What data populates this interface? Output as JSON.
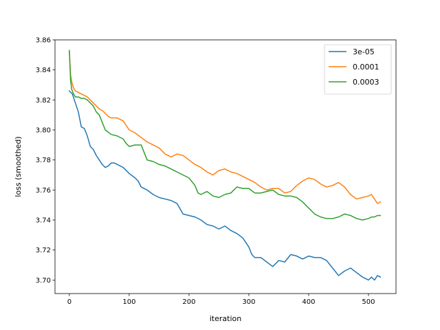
{
  "chart_data": {
    "type": "line",
    "title": "",
    "xlabel": "iteration",
    "ylabel": "loss (smoothed)",
    "xlim": [
      -24,
      546
    ],
    "ylim": [
      3.691,
      3.86
    ],
    "xticks": [
      0,
      100,
      200,
      300,
      400,
      500
    ],
    "yticks": [
      3.7,
      3.72,
      3.74,
      3.76,
      3.78,
      3.8,
      3.82,
      3.84,
      3.86
    ],
    "grid": false,
    "legend": {
      "position": "top-right"
    },
    "series": [
      {
        "name": "3e-05",
        "color": "#1f77b4",
        "x": [
          0,
          5,
          10,
          15,
          20,
          25,
          30,
          35,
          40,
          45,
          50,
          55,
          60,
          65,
          70,
          75,
          80,
          90,
          100,
          110,
          115,
          120,
          130,
          140,
          150,
          160,
          170,
          180,
          190,
          200,
          210,
          220,
          230,
          240,
          250,
          260,
          270,
          280,
          290,
          300,
          305,
          310,
          320,
          330,
          340,
          350,
          360,
          370,
          380,
          390,
          400,
          410,
          420,
          430,
          440,
          450,
          460,
          470,
          480,
          490,
          500,
          505,
          510,
          515,
          520
        ],
        "y": [
          3.826,
          3.824,
          3.818,
          3.812,
          3.802,
          3.801,
          3.796,
          3.789,
          3.787,
          3.783,
          3.78,
          3.777,
          3.775,
          3.776,
          3.778,
          3.778,
          3.777,
          3.775,
          3.771,
          3.768,
          3.766,
          3.762,
          3.76,
          3.757,
          3.755,
          3.754,
          3.753,
          3.751,
          3.744,
          3.743,
          3.742,
          3.74,
          3.737,
          3.736,
          3.734,
          3.736,
          3.733,
          3.731,
          3.728,
          3.722,
          3.717,
          3.715,
          3.715,
          3.712,
          3.709,
          3.713,
          3.712,
          3.717,
          3.716,
          3.714,
          3.716,
          3.715,
          3.715,
          3.713,
          3.708,
          3.703,
          3.706,
          3.708,
          3.705,
          3.702,
          3.7,
          3.702,
          3.7,
          3.703,
          3.702
        ]
      },
      {
        "name": "0.0001",
        "color": "#ff7f0e",
        "x": [
          0,
          2,
          4,
          7,
          10,
          15,
          20,
          25,
          30,
          35,
          40,
          45,
          50,
          55,
          60,
          65,
          70,
          80,
          90,
          100,
          110,
          120,
          130,
          140,
          150,
          160,
          170,
          180,
          190,
          200,
          210,
          220,
          230,
          240,
          250,
          260,
          270,
          280,
          290,
          300,
          310,
          320,
          330,
          340,
          350,
          360,
          370,
          380,
          390,
          400,
          410,
          420,
          430,
          440,
          450,
          460,
          470,
          480,
          490,
          500,
          505,
          510,
          515,
          520
        ],
        "y": [
          3.852,
          3.837,
          3.832,
          3.828,
          3.826,
          3.825,
          3.824,
          3.823,
          3.822,
          3.82,
          3.818,
          3.816,
          3.814,
          3.813,
          3.811,
          3.809,
          3.808,
          3.808,
          3.806,
          3.8,
          3.798,
          3.795,
          3.792,
          3.79,
          3.788,
          3.784,
          3.782,
          3.784,
          3.783,
          3.78,
          3.777,
          3.775,
          3.772,
          3.77,
          3.773,
          3.774,
          3.772,
          3.771,
          3.769,
          3.767,
          3.765,
          3.762,
          3.76,
          3.761,
          3.761,
          3.758,
          3.759,
          3.763,
          3.766,
          3.768,
          3.767,
          3.764,
          3.762,
          3.763,
          3.765,
          3.762,
          3.757,
          3.754,
          3.755,
          3.756,
          3.757,
          3.754,
          3.751,
          3.752
        ]
      },
      {
        "name": "0.0003",
        "color": "#2ca02c",
        "x": [
          0,
          2,
          4,
          7,
          10,
          15,
          20,
          25,
          30,
          35,
          40,
          45,
          50,
          55,
          60,
          70,
          80,
          90,
          95,
          100,
          110,
          120,
          130,
          140,
          150,
          160,
          170,
          180,
          190,
          200,
          210,
          215,
          220,
          230,
          240,
          250,
          260,
          270,
          280,
          290,
          300,
          310,
          320,
          330,
          340,
          350,
          360,
          370,
          380,
          390,
          400,
          410,
          420,
          430,
          440,
          450,
          460,
          470,
          480,
          490,
          500,
          505,
          510,
          515,
          520
        ],
        "y": [
          3.853,
          3.833,
          3.827,
          3.824,
          3.822,
          3.822,
          3.821,
          3.821,
          3.82,
          3.818,
          3.816,
          3.812,
          3.81,
          3.805,
          3.8,
          3.797,
          3.796,
          3.794,
          3.791,
          3.789,
          3.79,
          3.79,
          3.78,
          3.779,
          3.777,
          3.776,
          3.774,
          3.772,
          3.77,
          3.768,
          3.763,
          3.758,
          3.757,
          3.759,
          3.756,
          3.755,
          3.757,
          3.758,
          3.762,
          3.761,
          3.761,
          3.758,
          3.758,
          3.759,
          3.76,
          3.757,
          3.756,
          3.756,
          3.755,
          3.752,
          3.748,
          3.744,
          3.742,
          3.741,
          3.741,
          3.742,
          3.744,
          3.743,
          3.741,
          3.74,
          3.741,
          3.742,
          3.742,
          3.743,
          3.743
        ]
      }
    ]
  }
}
